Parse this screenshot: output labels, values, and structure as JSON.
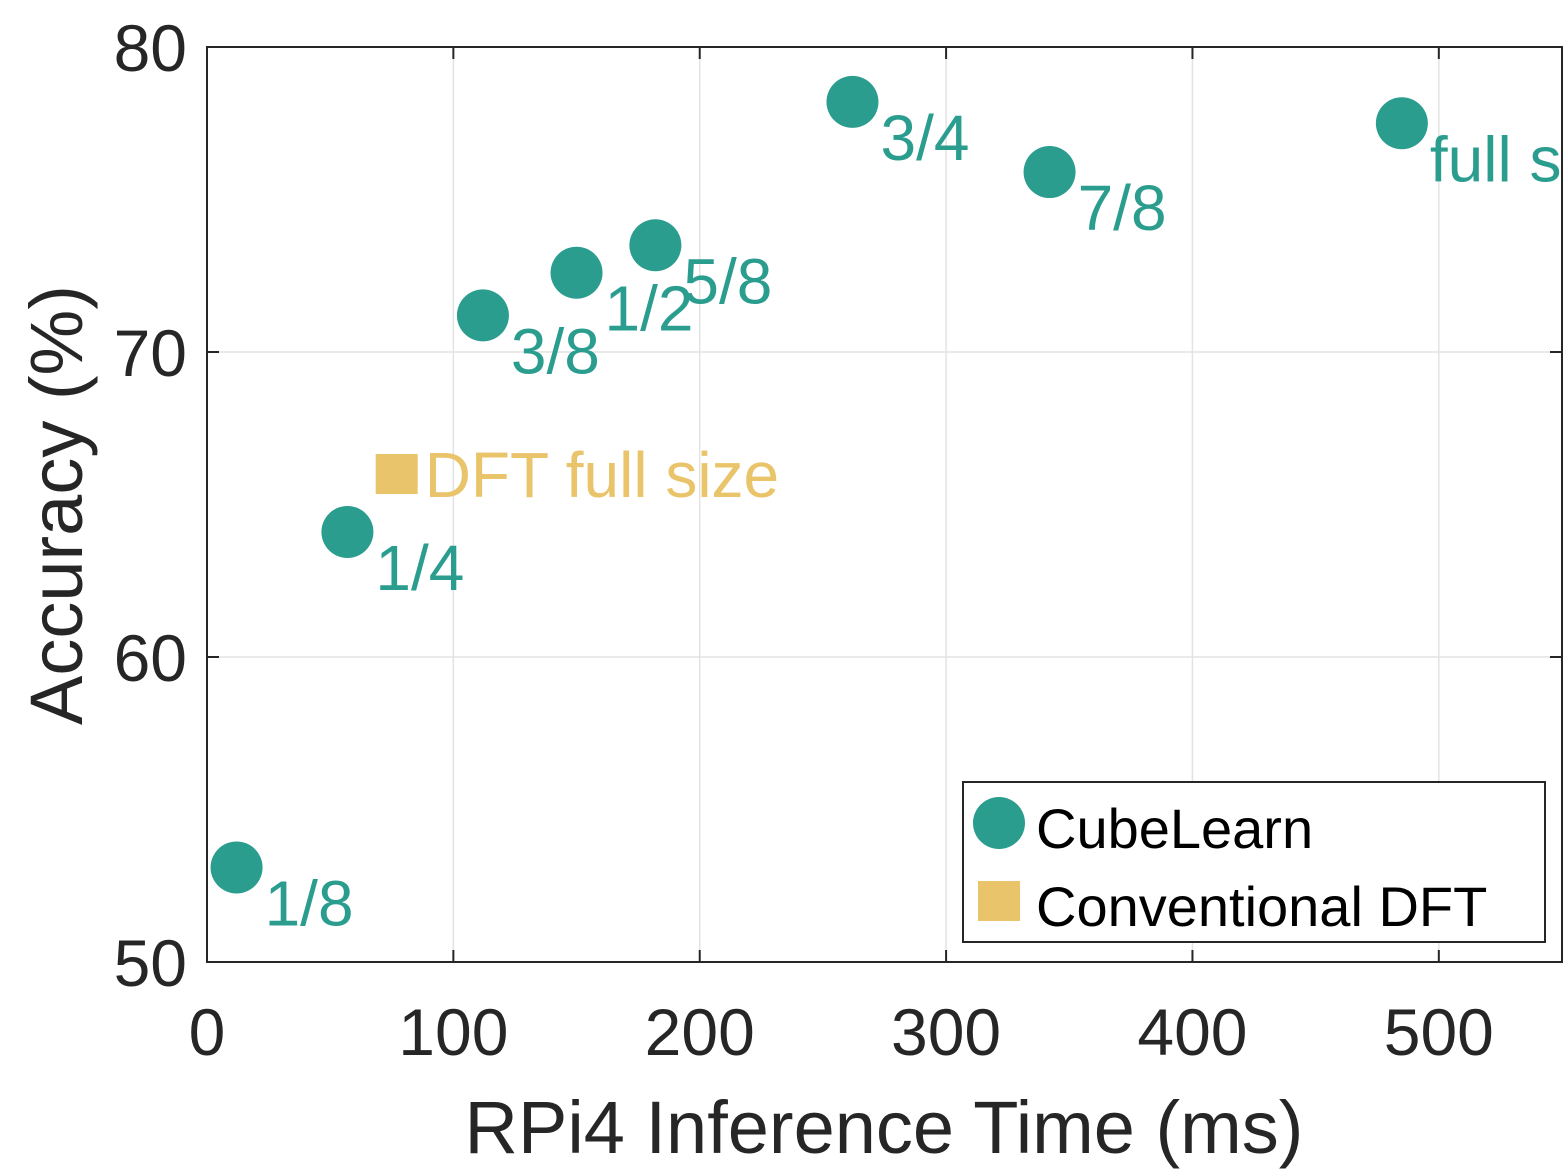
{
  "chart_data": {
    "type": "scatter",
    "title": "",
    "xlabel": "RPi4 Inference Time (ms)",
    "ylabel": "Accuracy (%)",
    "xlim": [
      0,
      550
    ],
    "ylim": [
      50,
      80
    ],
    "xticks": [
      0,
      100,
      200,
      300,
      400,
      500
    ],
    "yticks": [
      50,
      60,
      70,
      80
    ],
    "grid": true,
    "legend_position": "bottom-right",
    "series": [
      {
        "name": "CubeLearn",
        "marker": "circle",
        "color": "#2a9d8f",
        "points": [
          {
            "x": 12,
            "y": 53.1,
            "label": "1/8"
          },
          {
            "x": 57,
            "y": 64.1,
            "label": "1/4"
          },
          {
            "x": 112,
            "y": 71.2,
            "label": "3/8"
          },
          {
            "x": 150,
            "y": 72.6,
            "label": "1/2"
          },
          {
            "x": 182,
            "y": 73.5,
            "label": "5/8"
          },
          {
            "x": 262,
            "y": 78.2,
            "label": "3/4"
          },
          {
            "x": 342,
            "y": 75.9,
            "label": "7/8"
          },
          {
            "x": 485,
            "y": 77.5,
            "label": "full size"
          }
        ]
      },
      {
        "name": "Conventional DFT",
        "marker": "square",
        "color": "#e9c46a",
        "points": [
          {
            "x": 77,
            "y": 66.0,
            "label": "DFT full size"
          }
        ]
      }
    ]
  }
}
